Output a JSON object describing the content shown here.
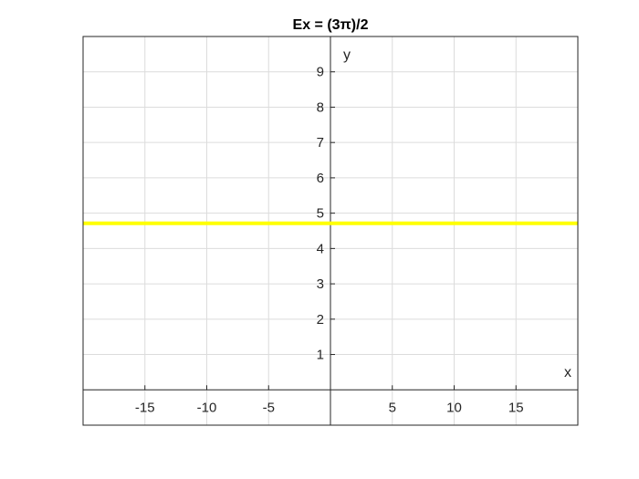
{
  "chart_data": {
    "type": "line",
    "title": "Ex = (3π)/2",
    "xlabel": "x",
    "ylabel": "y",
    "xlim": [
      -20,
      20
    ],
    "ylim": [
      -1,
      10
    ],
    "x_ticks": [
      -15,
      -10,
      -5,
      5,
      10,
      15
    ],
    "y_ticks": [
      1,
      2,
      3,
      4,
      5,
      6,
      7,
      8,
      9
    ],
    "grid": true,
    "legend": "none",
    "series": [
      {
        "color": "#ffff00",
        "x": [
          -20,
          20
        ],
        "y": [
          4.712,
          4.712
        ]
      }
    ]
  }
}
